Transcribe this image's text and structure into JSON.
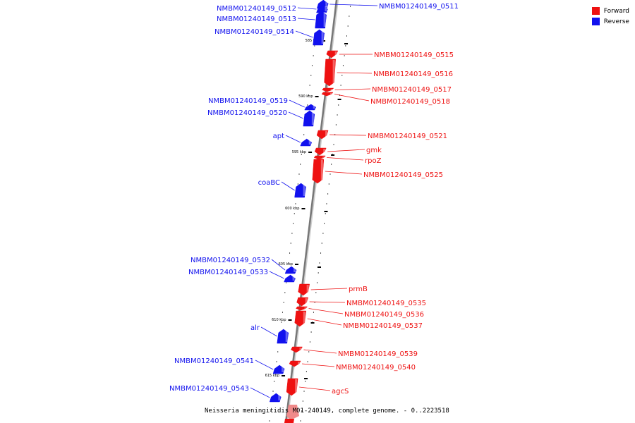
{
  "legend": {
    "forward": {
      "label": "Forward",
      "color": "#ee1111"
    },
    "reverse": {
      "label": "Reverse",
      "color": "#1111ee"
    }
  },
  "caption": "Neisseria meningitidis M01-240149, complete genome. - 0..2223518",
  "ticks": [
    "585 kbp",
    "590 kbp",
    "595 kbp",
    "600 kbp",
    "605 kbp",
    "610 kbp",
    "615 kbp"
  ],
  "genes": [
    {
      "name": "NMBM01240149_0511",
      "strand": "reverse"
    },
    {
      "name": "NMBM01240149_0512",
      "strand": "reverse"
    },
    {
      "name": "NMBM01240149_0513",
      "strand": "reverse"
    },
    {
      "name": "NMBM01240149_0514",
      "strand": "reverse"
    },
    {
      "name": "NMBM01240149_0515",
      "strand": "forward"
    },
    {
      "name": "NMBM01240149_0516",
      "strand": "forward"
    },
    {
      "name": "NMBM01240149_0517",
      "strand": "forward"
    },
    {
      "name": "NMBM01240149_0518",
      "strand": "forward"
    },
    {
      "name": "NMBM01240149_0519",
      "strand": "reverse"
    },
    {
      "name": "NMBM01240149_0520",
      "strand": "reverse"
    },
    {
      "name": "NMBM01240149_0521",
      "strand": "forward"
    },
    {
      "name": "apt",
      "strand": "reverse"
    },
    {
      "name": "gmk",
      "strand": "forward"
    },
    {
      "name": "rpoZ",
      "strand": "forward"
    },
    {
      "name": "NMBM01240149_0525",
      "strand": "forward"
    },
    {
      "name": "coaBC",
      "strand": "reverse"
    },
    {
      "name": "NMBM01240149_0532",
      "strand": "reverse"
    },
    {
      "name": "NMBM01240149_0533",
      "strand": "reverse"
    },
    {
      "name": "prmB",
      "strand": "forward"
    },
    {
      "name": "NMBM01240149_0535",
      "strand": "forward"
    },
    {
      "name": "NMBM01240149_0536",
      "strand": "forward"
    },
    {
      "name": "NMBM01240149_0537",
      "strand": "forward"
    },
    {
      "name": "alr",
      "strand": "reverse"
    },
    {
      "name": "NMBM01240149_0539",
      "strand": "forward"
    },
    {
      "name": "NMBM01240149_0540",
      "strand": "forward"
    },
    {
      "name": "NMBM01240149_0541",
      "strand": "reverse"
    },
    {
      "name": "agcS",
      "strand": "forward"
    },
    {
      "name": "NMBM01240149_0543",
      "strand": "reverse"
    }
  ]
}
